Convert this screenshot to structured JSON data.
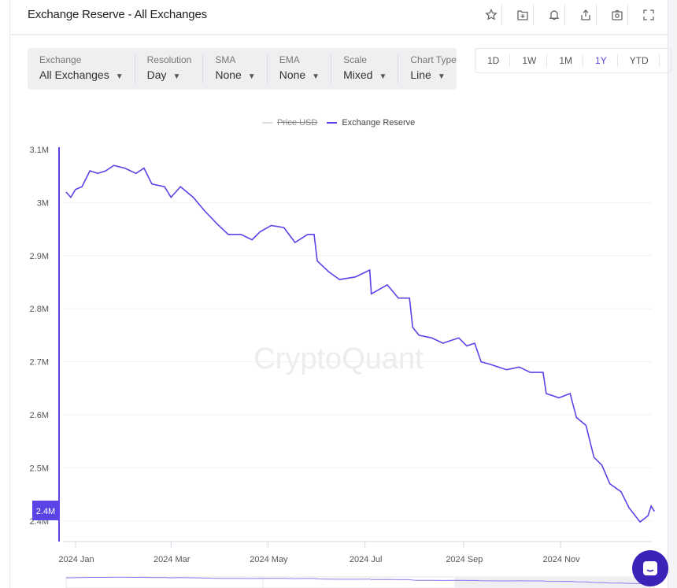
{
  "header": {
    "title": "Exchange Reserve - All Exchanges",
    "icons": [
      "star-icon",
      "folder-add-icon",
      "bell-icon",
      "share-icon",
      "camera-icon",
      "fullscreen-icon"
    ]
  },
  "filters": [
    {
      "label": "Exchange",
      "value": "All Exchanges"
    },
    {
      "label": "Resolution",
      "value": "Day"
    },
    {
      "label": "SMA",
      "value": "None"
    },
    {
      "label": "EMA",
      "value": "None"
    },
    {
      "label": "Scale",
      "value": "Mixed"
    },
    {
      "label": "Chart Type",
      "value": "Line"
    }
  ],
  "ranges": [
    {
      "label": "1D"
    },
    {
      "label": "1W"
    },
    {
      "label": "1M"
    },
    {
      "label": "1Y",
      "active": true
    },
    {
      "label": "YTD"
    }
  ],
  "watermark": "CryptoQuant",
  "colors": {
    "accent": "#5a44e6",
    "series": "#5b43e8",
    "chat": "#3b22b8"
  },
  "chart_data": {
    "type": "line",
    "legend": [
      {
        "name": "Price USD",
        "hidden": true,
        "color": "#cccccc"
      },
      {
        "name": "Exchange Reserve",
        "color": "#5b43e8"
      }
    ],
    "legend_position": "top",
    "y_ticks": [
      "3.1M",
      "3M",
      "2.9M",
      "2.8M",
      "2.7M",
      "2.6M",
      "2.5M",
      "2.4M"
    ],
    "y_tick_values": [
      3.1,
      3.0,
      2.9,
      2.8,
      2.7,
      2.6,
      2.5,
      2.4
    ],
    "ylim": [
      2.37,
      3.1
    ],
    "y_unit": "M",
    "current_value_label": "2.4M",
    "x_ticks": [
      {
        "label": "2024 Jan",
        "date": "2024-01-01"
      },
      {
        "label": "2024 Mar",
        "date": "2024-03-01"
      },
      {
        "label": "2024 May",
        "date": "2024-05-01"
      },
      {
        "label": "2024 Jul",
        "date": "2024-07-01"
      },
      {
        "label": "2024 Sep",
        "date": "2024-09-01"
      },
      {
        "label": "2024 Nov",
        "date": "2024-11-01"
      }
    ],
    "grid": true,
    "series": [
      {
        "name": "Exchange Reserve",
        "points": [
          [
            "2023-12-26",
            3.02
          ],
          [
            "2023-12-29",
            3.01
          ],
          [
            "2024-01-01",
            3.025
          ],
          [
            "2024-01-05",
            3.03
          ],
          [
            "2024-01-10",
            3.06
          ],
          [
            "2024-01-15",
            3.055
          ],
          [
            "2024-01-20",
            3.06
          ],
          [
            "2024-01-25",
            3.07
          ],
          [
            "2024-02-01",
            3.065
          ],
          [
            "2024-02-08",
            3.055
          ],
          [
            "2024-02-13",
            3.065
          ],
          [
            "2024-02-18",
            3.035
          ],
          [
            "2024-02-26",
            3.03
          ],
          [
            "2024-03-01",
            3.01
          ],
          [
            "2024-03-07",
            3.03
          ],
          [
            "2024-03-15",
            3.01
          ],
          [
            "2024-03-22",
            2.985
          ],
          [
            "2024-03-30",
            2.96
          ],
          [
            "2024-04-06",
            2.94
          ],
          [
            "2024-04-14",
            2.94
          ],
          [
            "2024-04-21",
            2.93
          ],
          [
            "2024-04-26",
            2.945
          ],
          [
            "2024-05-03",
            2.957
          ],
          [
            "2024-05-11",
            2.953
          ],
          [
            "2024-05-18",
            2.925
          ],
          [
            "2024-05-26",
            2.94
          ],
          [
            "2024-05-30",
            2.94
          ],
          [
            "2024-06-01",
            2.89
          ],
          [
            "2024-06-08",
            2.87
          ],
          [
            "2024-06-15",
            2.855
          ],
          [
            "2024-06-25",
            2.86
          ],
          [
            "2024-07-04",
            2.873
          ],
          [
            "2024-07-05",
            2.828
          ],
          [
            "2024-07-15",
            2.845
          ],
          [
            "2024-07-22",
            2.82
          ],
          [
            "2024-07-29",
            2.82
          ],
          [
            "2024-07-31",
            2.765
          ],
          [
            "2024-08-04",
            2.75
          ],
          [
            "2024-08-12",
            2.745
          ],
          [
            "2024-08-19",
            2.735
          ],
          [
            "2024-08-29",
            2.745
          ],
          [
            "2024-09-03",
            2.73
          ],
          [
            "2024-09-08",
            2.735
          ],
          [
            "2024-09-12",
            2.7
          ],
          [
            "2024-09-18",
            2.695
          ],
          [
            "2024-09-28",
            2.685
          ],
          [
            "2024-10-06",
            2.69
          ],
          [
            "2024-10-13",
            2.68
          ],
          [
            "2024-10-21",
            2.68
          ],
          [
            "2024-10-23",
            2.64
          ],
          [
            "2024-10-31",
            2.632
          ],
          [
            "2024-11-07",
            2.64
          ],
          [
            "2024-11-11",
            2.595
          ],
          [
            "2024-11-17",
            2.58
          ],
          [
            "2024-11-22",
            2.52
          ],
          [
            "2024-11-27",
            2.505
          ],
          [
            "2024-12-02",
            2.47
          ],
          [
            "2024-12-09",
            2.455
          ],
          [
            "2024-12-14",
            2.425
          ],
          [
            "2024-12-21",
            2.398
          ],
          [
            "2024-12-26",
            2.41
          ],
          [
            "2024-12-28",
            2.428
          ],
          [
            "2024-12-30",
            2.418
          ]
        ]
      }
    ]
  }
}
